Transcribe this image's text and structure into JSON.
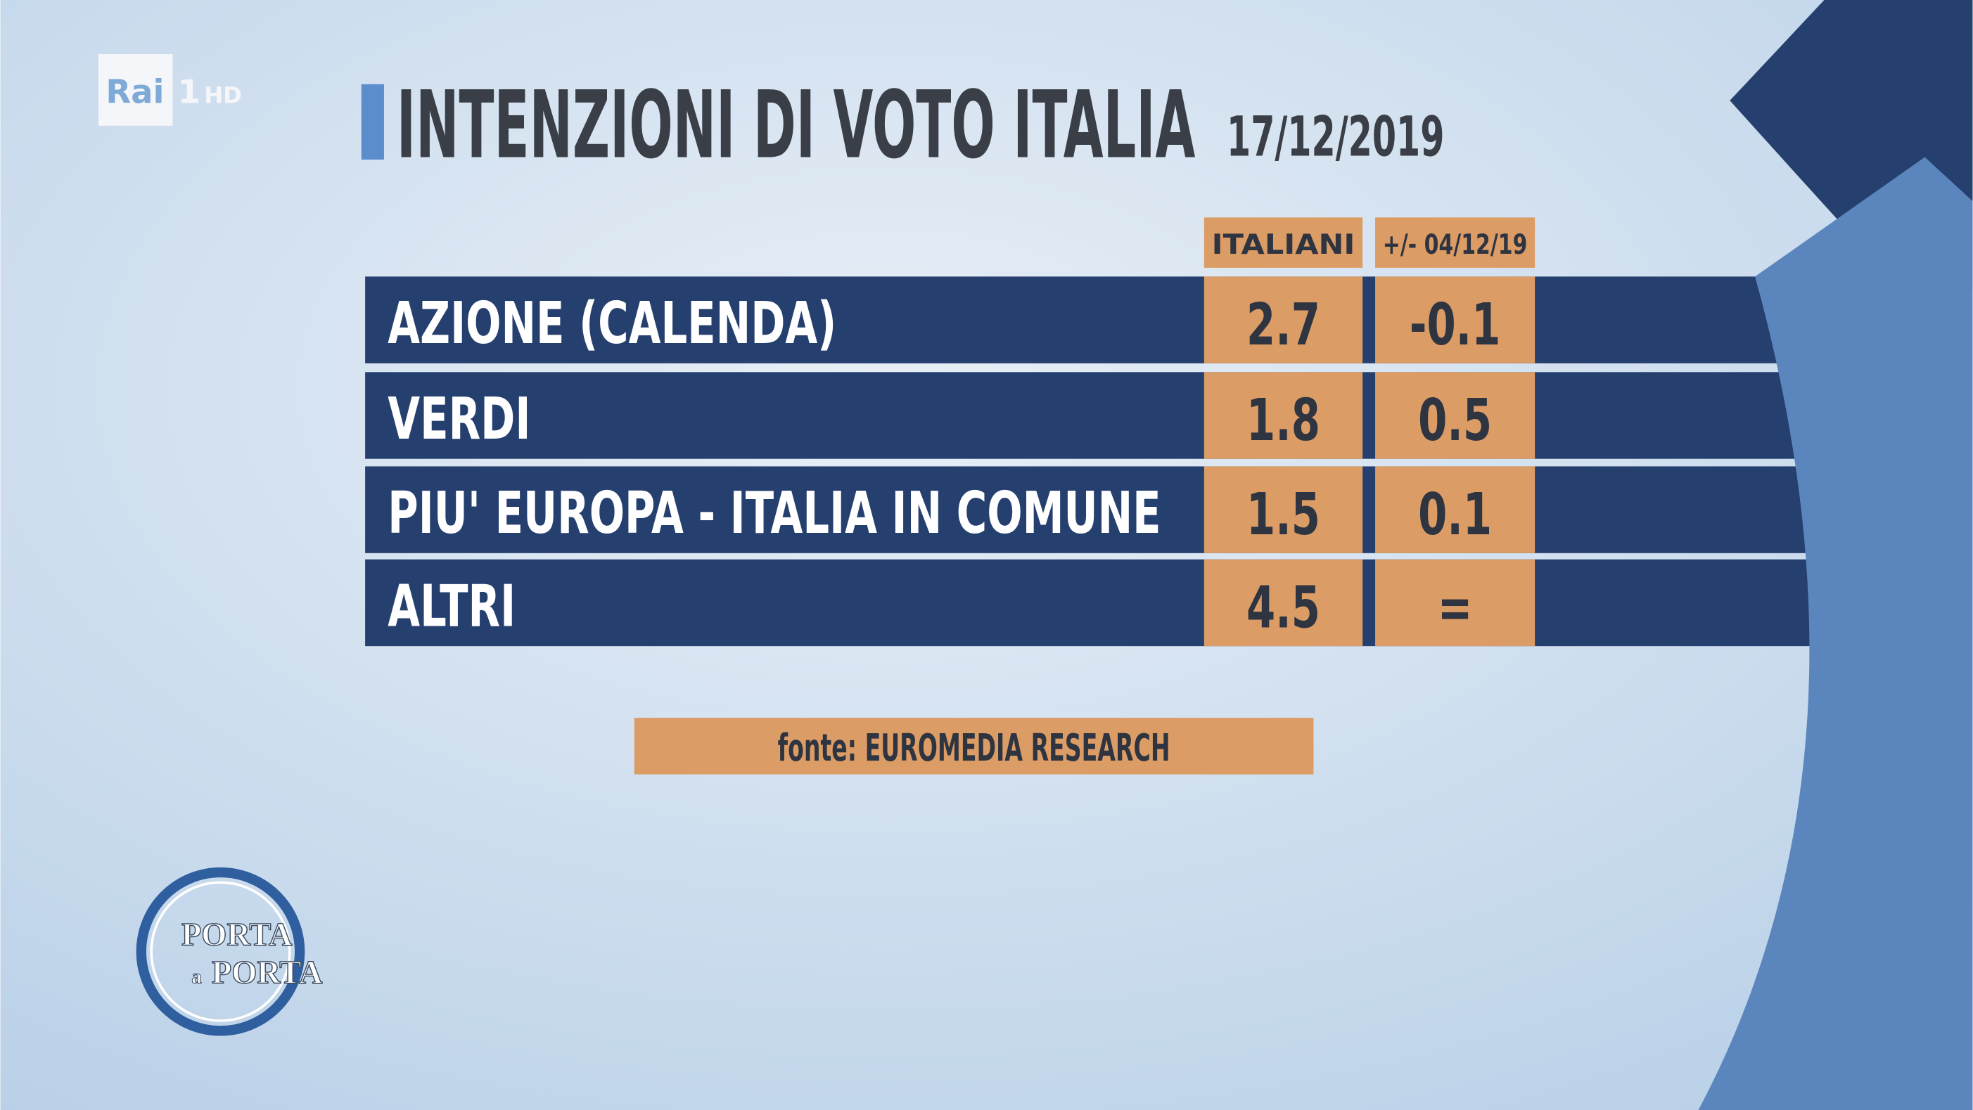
{
  "logo": {
    "channel": "Rai",
    "number": "1",
    "quality": "HD"
  },
  "header": {
    "title": "INTENZIONI DI VOTO ITALIA",
    "date": "17/12/2019"
  },
  "table": {
    "columns": [
      "ITALIANI",
      "+/- 04/12/19"
    ],
    "rows": [
      [
        "AZIONE (CALENDA)",
        "2.7",
        "-0.1"
      ],
      [
        "VERDI",
        "1.8",
        "0.5"
      ],
      [
        "PIU' EUROPA - ITALIA IN COMUNE",
        "1.5",
        "0.1"
      ],
      [
        "ALTRI",
        "4.5",
        "="
      ]
    ]
  },
  "source": "fonte: EUROMEDIA RESEARCH",
  "show": {
    "line1": "PORTA",
    "line2": "a",
    "line3": "PORTA"
  }
}
